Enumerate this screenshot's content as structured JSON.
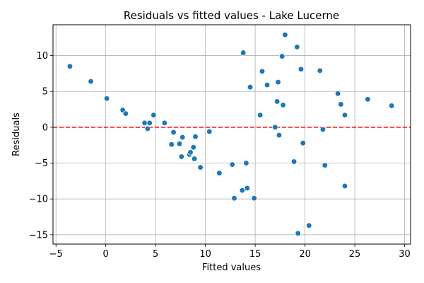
{
  "chart_data": {
    "type": "scatter",
    "title": "Residuals vs fitted values - Lake Lucerne",
    "xlabel": "Fitted values",
    "ylabel": "Residuals",
    "xlim": [
      -5.3,
      30.6
    ],
    "ylim": [
      -16.3,
      14.3
    ],
    "xticks": [
      -5,
      0,
      5,
      10,
      15,
      20,
      25,
      30
    ],
    "yticks": [
      -15,
      -10,
      -5,
      0,
      5,
      10
    ],
    "xtick_labels": [
      "−5",
      "0",
      "5",
      "10",
      "15",
      "20",
      "25",
      "30"
    ],
    "ytick_labels": [
      "−15",
      "−10",
      "−5",
      "0",
      "5",
      "10"
    ],
    "grid": true,
    "reference_line": {
      "y": 0,
      "color": "#ff0000",
      "style": "dashed"
    },
    "marker_color": "#1f77b4",
    "points": [
      {
        "x": -3.6,
        "y": 8.5
      },
      {
        "x": -1.5,
        "y": 6.4
      },
      {
        "x": 0.1,
        "y": 4.0
      },
      {
        "x": 1.7,
        "y": 2.4
      },
      {
        "x": 2.0,
        "y": 1.9
      },
      {
        "x": 3.9,
        "y": 0.6
      },
      {
        "x": 4.2,
        "y": -0.2
      },
      {
        "x": 4.4,
        "y": 0.6
      },
      {
        "x": 4.8,
        "y": 1.7
      },
      {
        "x": 5.9,
        "y": 0.6
      },
      {
        "x": 6.6,
        "y": -2.4
      },
      {
        "x": 6.8,
        "y": -0.7
      },
      {
        "x": 7.4,
        "y": -2.3
      },
      {
        "x": 7.6,
        "y": -4.1
      },
      {
        "x": 7.7,
        "y": -1.4
      },
      {
        "x": 8.4,
        "y": -3.8
      },
      {
        "x": 8.5,
        "y": -3.5
      },
      {
        "x": 8.8,
        "y": -2.8
      },
      {
        "x": 8.9,
        "y": -4.4
      },
      {
        "x": 9.0,
        "y": -1.3
      },
      {
        "x": 9.5,
        "y": -5.6
      },
      {
        "x": 10.4,
        "y": -0.6
      },
      {
        "x": 11.4,
        "y": -6.4
      },
      {
        "x": 12.7,
        "y": -5.2
      },
      {
        "x": 12.9,
        "y": -9.9
      },
      {
        "x": 13.7,
        "y": -8.8
      },
      {
        "x": 13.8,
        "y": 10.4
      },
      {
        "x": 14.1,
        "y": -5.0
      },
      {
        "x": 14.2,
        "y": -8.5
      },
      {
        "x": 14.5,
        "y": 5.6
      },
      {
        "x": 14.9,
        "y": -9.9
      },
      {
        "x": 15.5,
        "y": 1.7
      },
      {
        "x": 15.7,
        "y": 7.8
      },
      {
        "x": 16.2,
        "y": 5.9
      },
      {
        "x": 17.0,
        "y": 0.0
      },
      {
        "x": 17.2,
        "y": 3.6
      },
      {
        "x": 17.3,
        "y": 6.3
      },
      {
        "x": 17.4,
        "y": -1.1
      },
      {
        "x": 17.7,
        "y": 9.9
      },
      {
        "x": 17.8,
        "y": 3.1
      },
      {
        "x": 18.0,
        "y": 12.9
      },
      {
        "x": 18.9,
        "y": -4.8
      },
      {
        "x": 19.2,
        "y": 11.2
      },
      {
        "x": 19.3,
        "y": -14.8
      },
      {
        "x": 19.6,
        "y": 8.1
      },
      {
        "x": 19.8,
        "y": -2.2
      },
      {
        "x": 20.4,
        "y": -13.7
      },
      {
        "x": 21.5,
        "y": 7.9
      },
      {
        "x": 21.8,
        "y": -0.3
      },
      {
        "x": 22.0,
        "y": -5.3
      },
      {
        "x": 23.3,
        "y": 4.7
      },
      {
        "x": 23.6,
        "y": 3.2
      },
      {
        "x": 24.0,
        "y": 1.7
      },
      {
        "x": 24.0,
        "y": -8.2
      },
      {
        "x": 26.3,
        "y": 3.9
      },
      {
        "x": 28.7,
        "y": 3.0
      }
    ]
  }
}
